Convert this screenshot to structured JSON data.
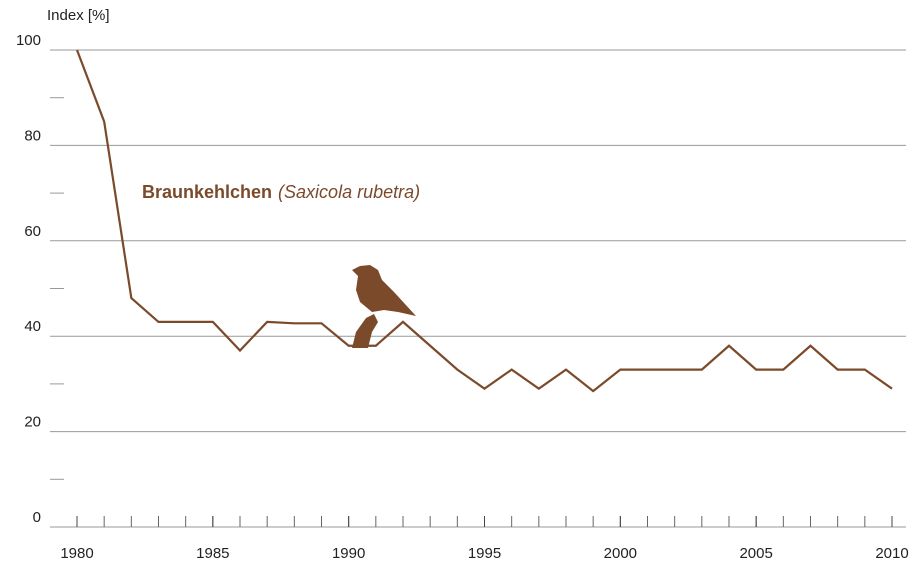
{
  "chart_data": {
    "type": "line",
    "title": "Braunkehlchen",
    "subtitle": "(Saxicola rubetra)",
    "y_label": "Index [%]",
    "x": [
      1980,
      1981,
      1982,
      1983,
      1984,
      1985,
      1986,
      1987,
      1988,
      1989,
      1990,
      1991,
      1992,
      1993,
      1994,
      1995,
      1996,
      1997,
      1998,
      1999,
      2000,
      2001,
      2002,
      2003,
      2004,
      2005,
      2006,
      2007,
      2008,
      2009,
      2010
    ],
    "values": [
      100,
      85,
      48,
      43,
      43,
      43,
      37,
      43,
      42.7,
      42.7,
      38,
      38,
      43,
      38,
      33,
      29,
      33,
      29,
      33,
      28.5,
      33,
      33,
      33,
      33,
      38,
      33,
      33,
      38,
      33,
      33,
      29
    ],
    "color": "#7b4a2b",
    "xlim": [
      1980,
      2010
    ],
    "xticks": [
      1980,
      1985,
      1990,
      1995,
      2000,
      2005,
      2010
    ],
    "ylim": [
      0,
      100
    ],
    "yticks": [
      0,
      20,
      40,
      60,
      80,
      100
    ],
    "grid": true
  }
}
